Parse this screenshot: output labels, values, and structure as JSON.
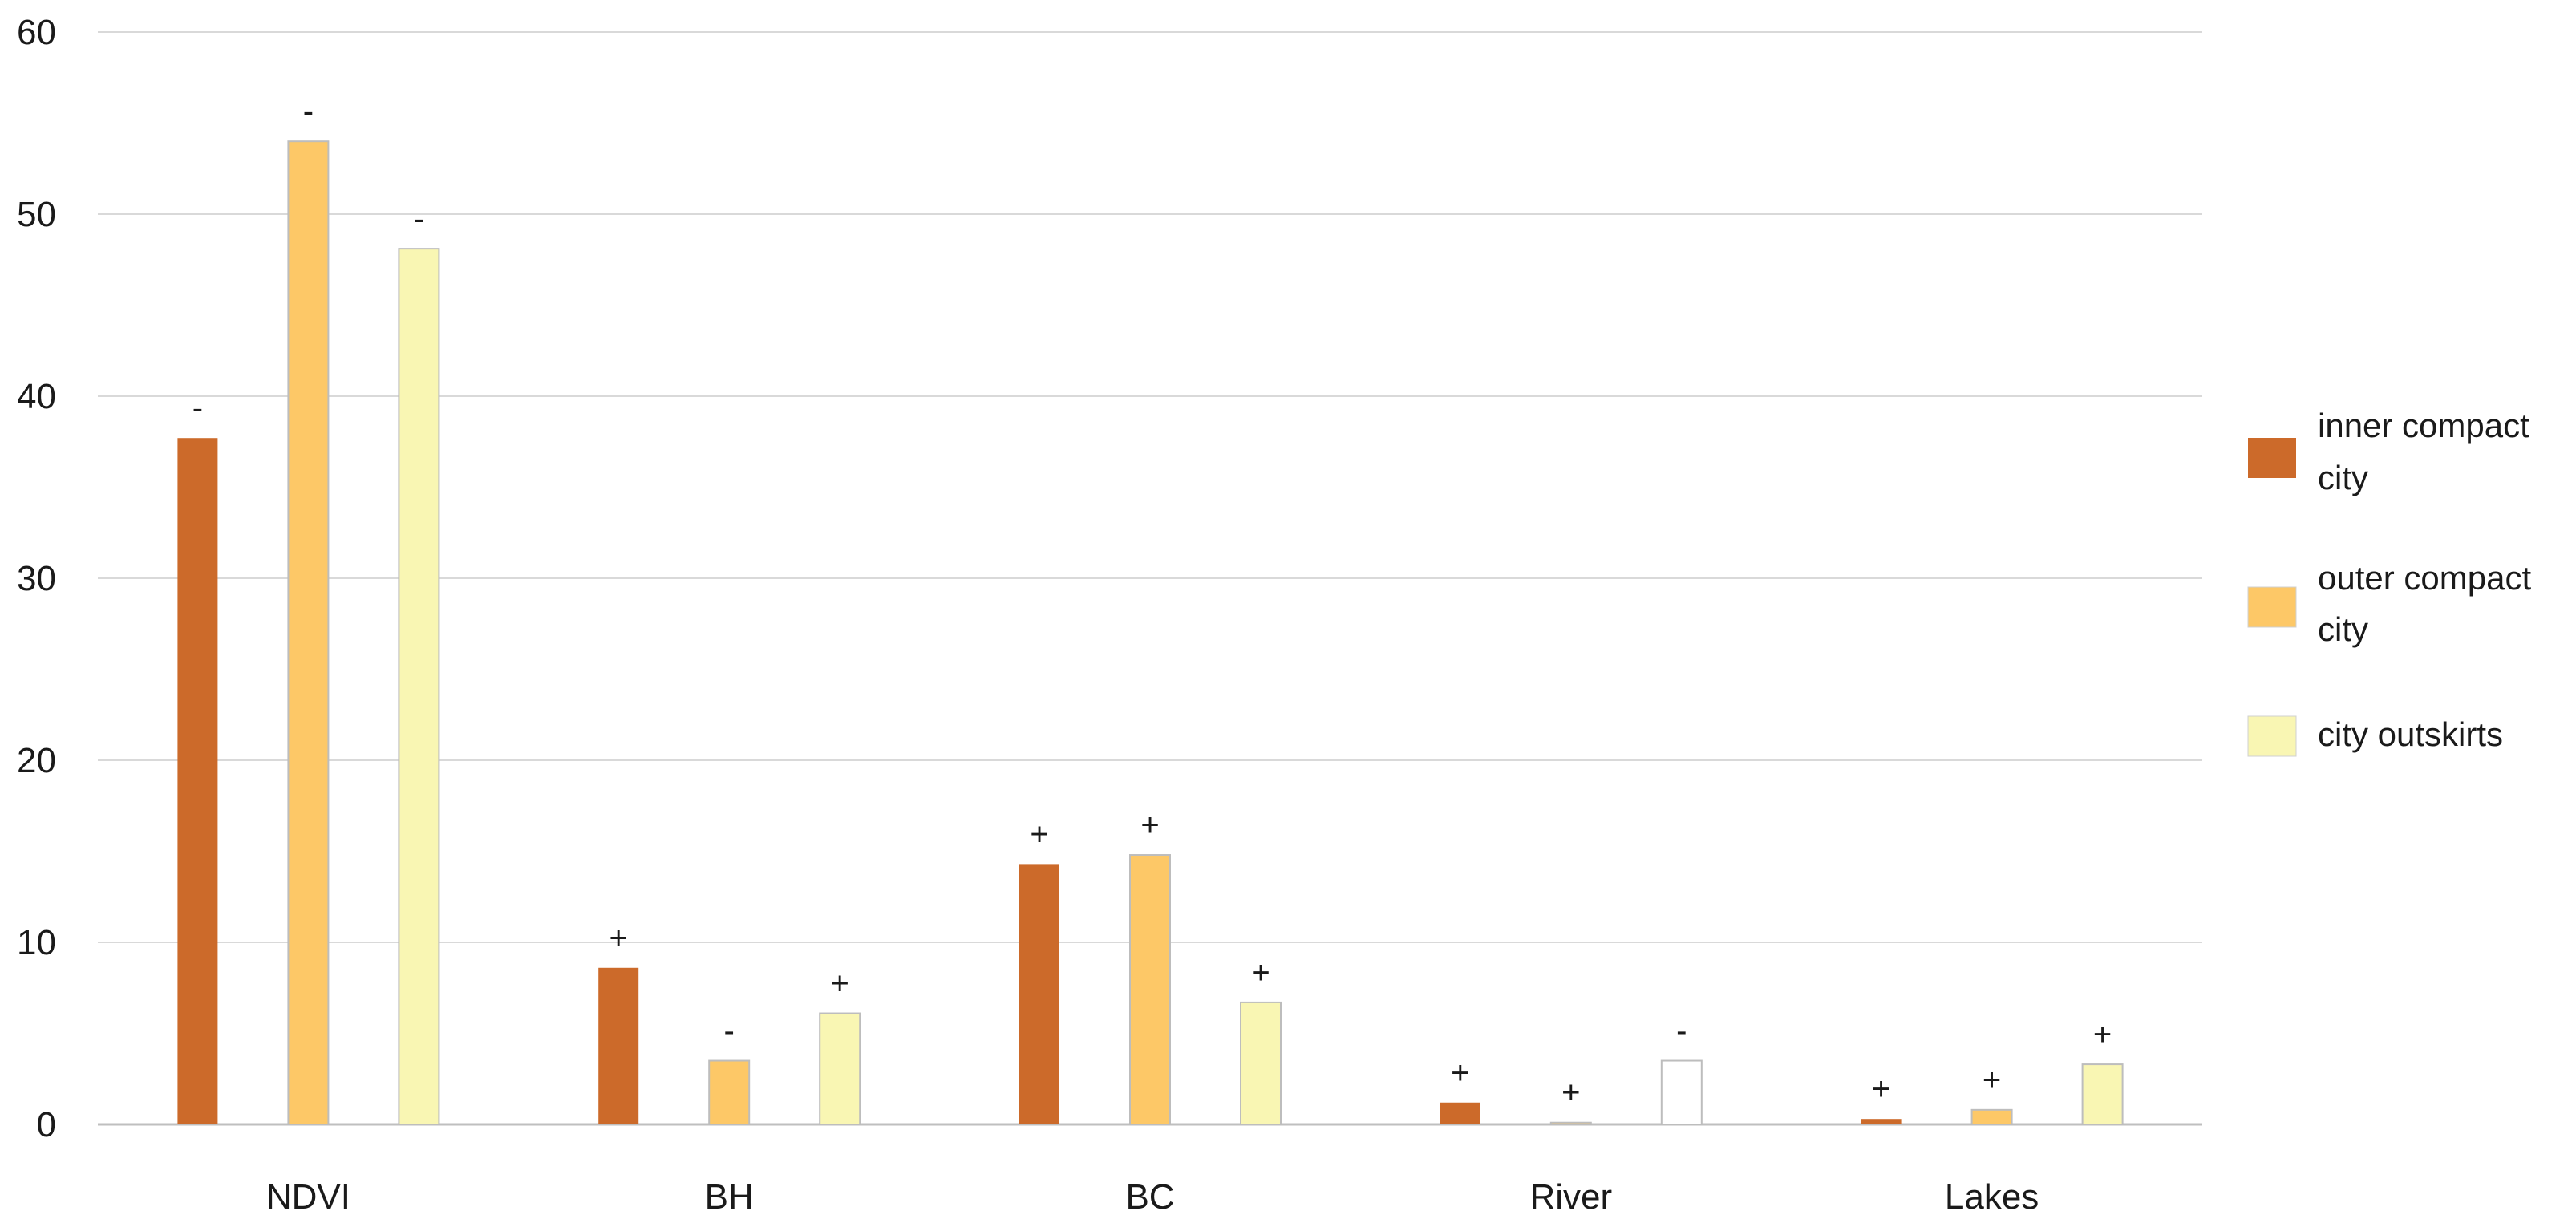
{
  "chart_data": {
    "type": "bar",
    "title": "",
    "xlabel": "",
    "ylabel": "",
    "ylim": [
      0,
      60
    ],
    "yticks": [
      0,
      10,
      20,
      30,
      40,
      50,
      60
    ],
    "grid": true,
    "legend_position": "right",
    "categories": [
      "NDVI",
      "BH",
      "BC",
      "River",
      "Lakes"
    ],
    "series": [
      {
        "name": "inner compact city",
        "color": "#CC6A2A",
        "values": [
          37.7,
          8.6,
          14.3,
          1.2,
          0.3
        ],
        "signs": [
          "-",
          "+",
          "+",
          "+",
          "+"
        ]
      },
      {
        "name": "outer compact city",
        "color": "#FDC867",
        "values": [
          54.0,
          3.5,
          14.8,
          0.1,
          0.8
        ],
        "signs": [
          "-",
          "-",
          "+",
          "+",
          "+"
        ]
      },
      {
        "name": "city outskirts",
        "color": "#F9F6B3",
        "values": [
          48.1,
          6.1,
          6.7,
          3.5,
          3.3
        ],
        "signs": [
          "-",
          "+",
          "+",
          "-",
          "+"
        ]
      }
    ]
  }
}
